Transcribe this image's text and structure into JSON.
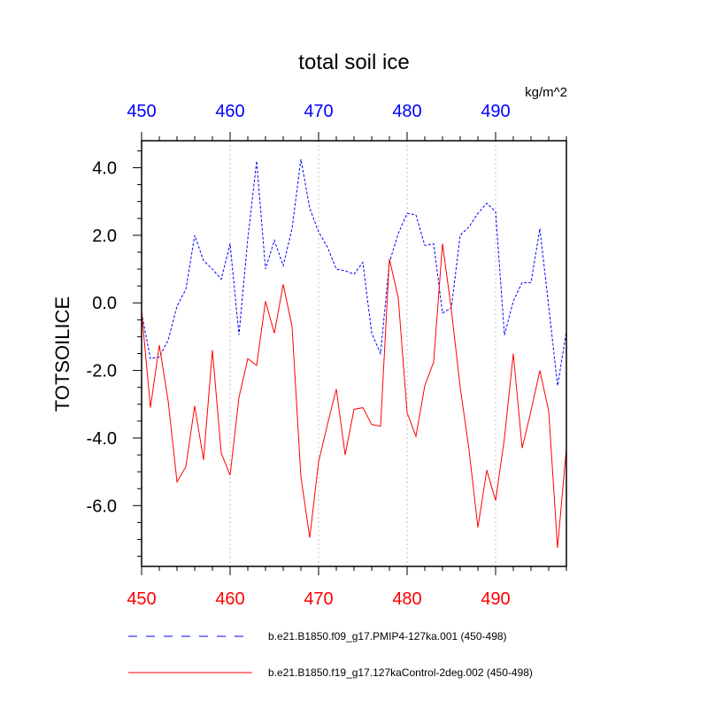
{
  "chart_data": {
    "type": "line",
    "title": "total soil ice",
    "units": "kg/m^2",
    "ylabel": "TOTSOILICE",
    "xlabel": "",
    "xlim": [
      450,
      498
    ],
    "ylim": [
      -7.8,
      4.8
    ],
    "x_ticks": [
      450,
      460,
      470,
      480,
      490
    ],
    "x_tick_labels": [
      "450",
      "460",
      "470",
      "480",
      "490"
    ],
    "y_ticks": [
      -6,
      -4,
      -2,
      0,
      2,
      4
    ],
    "y_tick_labels": [
      "-6.0",
      "-4.0",
      "-2.0",
      "0.0",
      "2.0",
      "4.0"
    ],
    "x_gridlines": [
      460,
      470,
      480,
      490
    ],
    "colors": {
      "series_blue": "#0000ff",
      "series_red": "#ff0000",
      "top_axis_labels": "#0000ff",
      "bottom_axis_labels": "#ff0000",
      "grid": "#c0c0c0",
      "frame": "#000000"
    },
    "x": [
      450,
      451,
      452,
      453,
      454,
      455,
      456,
      457,
      458,
      459,
      460,
      461,
      462,
      463,
      464,
      465,
      466,
      467,
      468,
      469,
      470,
      471,
      472,
      473,
      474,
      475,
      476,
      477,
      478,
      479,
      480,
      481,
      482,
      483,
      484,
      485,
      486,
      487,
      488,
      489,
      490,
      491,
      492,
      493,
      494,
      495,
      496,
      497,
      498
    ],
    "series": [
      {
        "name": "b.e21.B1850.f09_g17.PMIP4-127ka.001 (450-498)",
        "color": "#0000ff",
        "style": "dashed",
        "values": [
          -0.3,
          -1.65,
          -1.6,
          -1.1,
          -0.1,
          0.4,
          2.0,
          1.25,
          1.0,
          0.7,
          1.75,
          -0.95,
          1.9,
          4.2,
          1.0,
          1.85,
          1.1,
          2.2,
          4.25,
          2.8,
          2.1,
          1.65,
          1.0,
          0.95,
          0.85,
          1.2,
          -0.9,
          -1.5,
          1.2,
          2.05,
          2.65,
          2.6,
          1.7,
          1.75,
          -0.3,
          -0.15,
          2.0,
          2.25,
          2.65,
          2.95,
          2.7,
          -0.95,
          0.05,
          0.6,
          0.6,
          2.2,
          -0.1,
          -2.45,
          -0.85
        ]
      },
      {
        "name": "b.e21.B1850.f19_g17.127kaControl-2deg.002 (450-498)",
        "color": "#ff0000",
        "style": "solid",
        "values": [
          -0.25,
          -3.1,
          -1.25,
          -2.9,
          -5.3,
          -4.85,
          -3.05,
          -4.65,
          -1.4,
          -4.45,
          -5.1,
          -2.8,
          -1.65,
          -1.85,
          0.05,
          -0.9,
          0.55,
          -0.7,
          -5.15,
          -6.95,
          -4.7,
          -3.6,
          -2.55,
          -4.5,
          -3.15,
          -3.1,
          -3.6,
          -3.65,
          1.3,
          0.15,
          -3.25,
          -3.95,
          -2.45,
          -1.75,
          1.75,
          -0.2,
          -2.5,
          -4.35,
          -6.65,
          -4.95,
          -5.85,
          -4.0,
          -1.5,
          -4.3,
          -3.2,
          -2.0,
          -3.2,
          -7.25,
          -4.3
        ]
      }
    ],
    "legend": {
      "placement": "bottom",
      "entries": [
        "b.e21.B1850.f09_g17.PMIP4-127ka.001 (450-498)",
        "b.e21.B1850.f19_g17.127kaControl-2deg.002 (450-498)"
      ]
    }
  }
}
